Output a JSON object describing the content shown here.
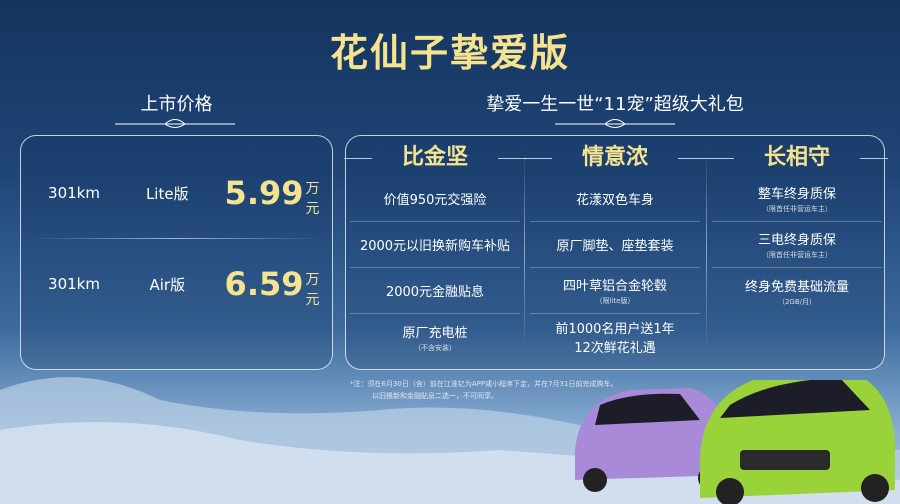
{
  "title": "花仙子挚爱版",
  "pricing": {
    "heading": "上市价格",
    "rows": [
      {
        "range": "301km",
        "version": "Lite版",
        "price": "5.99",
        "unit": "万元"
      },
      {
        "range": "301km",
        "version": "Air版",
        "price": "6.59",
        "unit": "万元"
      }
    ]
  },
  "gift": {
    "heading": "挚爱一生一世“11宠”超级大礼包",
    "columns": [
      {
        "title": "比金坚",
        "items": [
          {
            "text": "价值950元交强险"
          },
          {
            "text": "2000元以旧换新购车补贴"
          },
          {
            "text": "2000元金融贴息"
          },
          {
            "text": "原厂充电桩",
            "sub": "（不含安装）"
          }
        ]
      },
      {
        "title": "情意浓",
        "items": [
          {
            "text": "花漾双色车身"
          },
          {
            "text": "原厂脚垫、座垫套装"
          },
          {
            "text": "四叶草铝合金轮毂",
            "sub": "（限lite版）"
          },
          {
            "text": "前1000名用户送1年",
            "text2": "12次鲜花礼遇"
          }
        ]
      },
      {
        "title": "长相守",
        "items": [
          {
            "text": "整车终身质保",
            "sub": "（限首任非营运车主）"
          },
          {
            "text": "三电终身质保",
            "sub": "（限首任非营运车主）"
          },
          {
            "text": "终身免费基础流量",
            "sub": "（2GB/月）"
          }
        ]
      }
    ]
  },
  "note": {
    "line1": "*注：须在6月30日（含）前在江淮钇为APP或小程序下定，并在7月31日前完成购车。",
    "line2": "以旧换新和金融贴息二选一，不可同享。"
  },
  "colors": {
    "gold": "#f6e38f",
    "purple_car": "#a98ad8",
    "green_car": "#9ad23a"
  }
}
